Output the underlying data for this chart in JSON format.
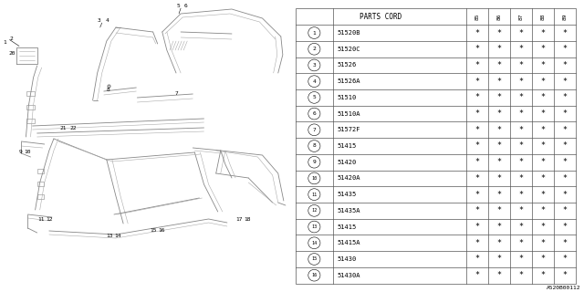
{
  "title": "A520B00112",
  "table_header": "PARTS CORD",
  "year_cols": [
    "85",
    "86",
    "87",
    "88",
    "89"
  ],
  "rows": [
    {
      "num": 1,
      "part": "51520B"
    },
    {
      "num": 2,
      "part": "51520C"
    },
    {
      "num": 3,
      "part": "51526"
    },
    {
      "num": 4,
      "part": "51526A"
    },
    {
      "num": 5,
      "part": "51510"
    },
    {
      "num": 6,
      "part": "51510A"
    },
    {
      "num": 7,
      "part": "51572F"
    },
    {
      "num": 8,
      "part": "51415"
    },
    {
      "num": 9,
      "part": "51420"
    },
    {
      "num": 10,
      "part": "51420A"
    },
    {
      "num": 11,
      "part": "51435"
    },
    {
      "num": 12,
      "part": "51435A"
    },
    {
      "num": 13,
      "part": "51415"
    },
    {
      "num": 14,
      "part": "51415A"
    },
    {
      "num": 15,
      "part": "51430"
    },
    {
      "num": 16,
      "part": "51430A"
    }
  ],
  "bg_color": "#ffffff",
  "line_color": "#555555",
  "draw_color": "#888888",
  "light_color": "#aaaaaa"
}
